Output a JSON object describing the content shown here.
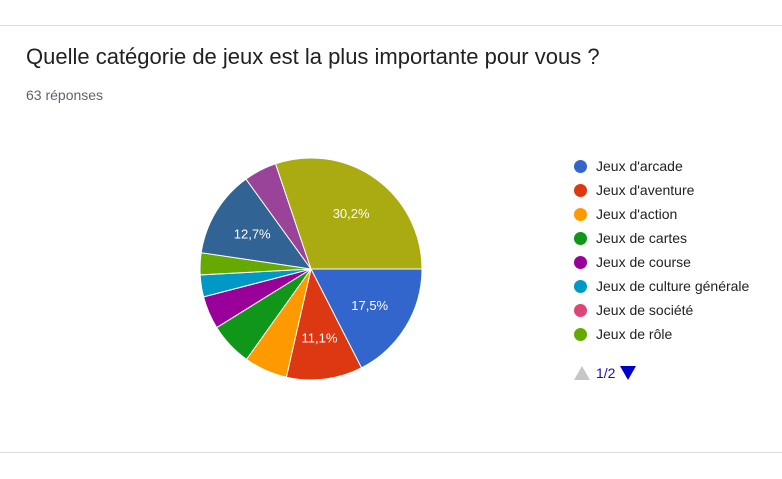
{
  "title": "Quelle catégorie de jeux est la plus importante pour vous ?",
  "subtitle": "63 réponses",
  "pager": {
    "text": "1/2"
  },
  "chart_data": {
    "type": "pie",
    "title": "Quelle catégorie de jeux est la plus importante pour vous ?",
    "total_responses": 63,
    "slices": [
      {
        "label": "Jeux d'arcade",
        "value": 17.5,
        "color": "#3366cc",
        "data_label": "17,5%"
      },
      {
        "label": "Jeux d'aventure",
        "value": 11.1,
        "color": "#dc3912",
        "data_label": "11,1%"
      },
      {
        "label": "Jeux d'action",
        "value": 6.3,
        "color": "#ff9900",
        "data_label": ""
      },
      {
        "label": "Jeux de cartes",
        "value": 6.3,
        "color": "#109618",
        "data_label": ""
      },
      {
        "label": "Jeux de course",
        "value": 4.8,
        "color": "#990099",
        "data_label": ""
      },
      {
        "label": "Jeux de culture générale",
        "value": 3.2,
        "color": "#0099c6",
        "data_label": ""
      },
      {
        "label": "Jeux de société",
        "value": 0,
        "color": "#dd4477",
        "data_label": ""
      },
      {
        "label": "Jeux de rôle",
        "value": 3.2,
        "color": "#66aa00",
        "data_label": ""
      },
      {
        "label": "",
        "value": 12.7,
        "color": "#316395",
        "data_label": "12,7%"
      },
      {
        "label": "",
        "value": 4.8,
        "color": "#994499",
        "data_label": ""
      },
      {
        "label": "",
        "value": 30.2,
        "color": "#aaaa11",
        "data_label": "30,2%"
      }
    ],
    "legend_visible_count": 8,
    "legend_position": "right"
  }
}
